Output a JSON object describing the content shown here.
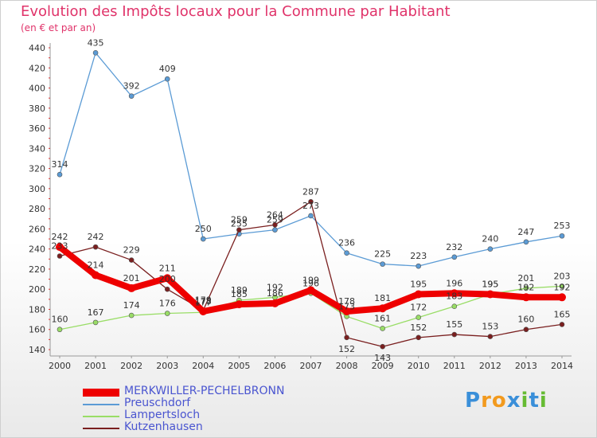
{
  "chart_data": {
    "type": "line",
    "title": "Evolution des Impôts locaux pour la Commune par Habitant",
    "subtitle": "(en € et par an)",
    "x": [
      "2000",
      "2001",
      "2002",
      "2003",
      "2004",
      "2005",
      "2006",
      "2007",
      "2008",
      "2009",
      "2010",
      "2011",
      "2012",
      "2013",
      "2014"
    ],
    "ylim": [
      140,
      440
    ],
    "yticks": [
      140,
      160,
      180,
      200,
      220,
      240,
      260,
      280,
      300,
      320,
      340,
      360,
      380,
      400,
      420,
      440
    ],
    "grid": false,
    "legend_position": "bottom-left",
    "series": [
      {
        "name": "MERKWILLER-PECHELBRONN",
        "color": "#ee0000",
        "values": [
          242,
          214,
          201,
          211,
          178,
          185,
          186,
          199,
          178,
          181,
          195,
          196,
          195,
          192,
          192
        ]
      },
      {
        "name": "Preuschdorf",
        "color": "#5b9bd5",
        "values": [
          314,
          435,
          392,
          409,
          250,
          255,
          259,
          273,
          236,
          225,
          223,
          232,
          240,
          247,
          253
        ]
      },
      {
        "name": "Lampertsloch",
        "color": "#99dd66",
        "values": [
          160,
          167,
          174,
          176,
          177,
          189,
          192,
          196,
          173,
          161,
          172,
          183,
          195,
          201,
          203
        ]
      },
      {
        "name": "Kutzenhausen",
        "color": "#7a1f1f",
        "values": [
          233,
          242,
          229,
          200,
          179,
          259,
          264,
          287,
          152,
          143,
          152,
          155,
          153,
          160,
          165
        ]
      }
    ]
  },
  "logo": {
    "letters": [
      "P",
      "r",
      "o",
      "x",
      "i",
      "t",
      "i"
    ],
    "colors": [
      "#3a8fd9",
      "#f29a1e",
      "#f29a1e",
      "#3a8fd9",
      "#66bb33",
      "#3a8fd9",
      "#66bb33"
    ]
  }
}
